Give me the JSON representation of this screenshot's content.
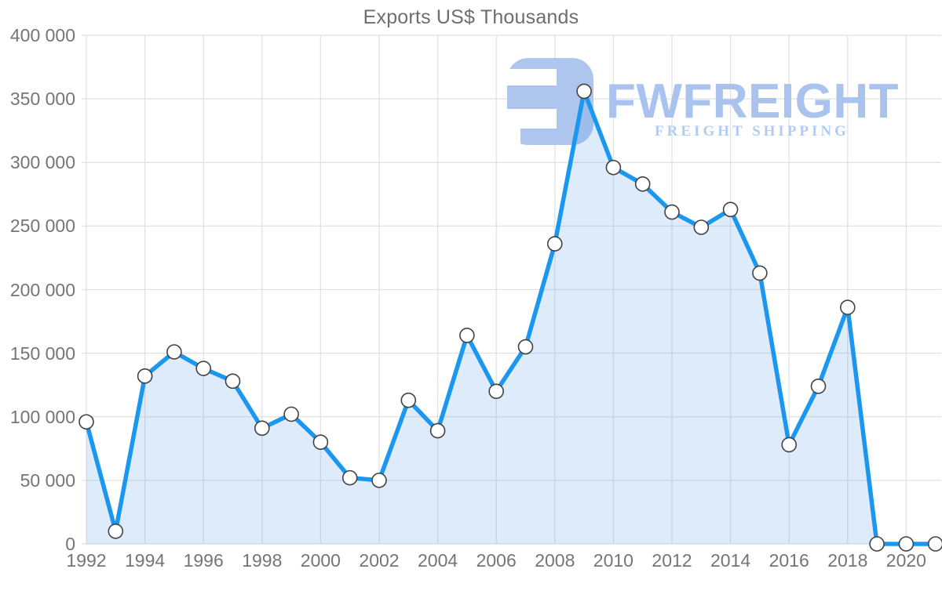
{
  "title": "Exports US$ Thousands",
  "watermark": {
    "brand": "FWFREIGHT",
    "tagline": "FREIGHT SHIPPING",
    "logo_color": "#aec6ee",
    "brand_color": "#a9c3ee",
    "tagline_color": "#b3cbf2"
  },
  "colors": {
    "line": "#1b97ef",
    "area": "rgba(100,165,235,0.22)",
    "marker_fill": "#ffffff",
    "marker_stroke": "#424242",
    "grid": "#e1e1e1",
    "tick_text": "#757575",
    "title_text": "#6e6e6e"
  },
  "chart_data": {
    "type": "area",
    "title": "Exports US$ Thousands",
    "xlabel": "",
    "ylabel": "",
    "x": [
      1992,
      1993,
      1994,
      1995,
      1996,
      1997,
      1998,
      1999,
      2000,
      2001,
      2002,
      2003,
      2004,
      2005,
      2006,
      2007,
      2008,
      2009,
      2010,
      2011,
      2012,
      2013,
      2014,
      2015,
      2016,
      2017,
      2018,
      2019,
      2020,
      2021
    ],
    "values": [
      96000,
      10000,
      132000,
      151000,
      138000,
      128000,
      91000,
      102000,
      80000,
      52000,
      50000,
      113000,
      89000,
      164000,
      120000,
      155000,
      236000,
      356000,
      296000,
      283000,
      261000,
      249000,
      263000,
      213000,
      78000,
      124000,
      186000,
      0,
      0,
      0
    ],
    "ylim": [
      0,
      400000
    ],
    "ytick_step": 50000,
    "ytick_labels": [
      "0",
      "50 000",
      "100 000",
      "150 000",
      "200 000",
      "250 000",
      "300 000",
      "350 000",
      "400 000"
    ],
    "xtick_years": [
      1992,
      1994,
      1996,
      1998,
      2000,
      2002,
      2004,
      2006,
      2008,
      2010,
      2012,
      2014,
      2016,
      2018,
      2020
    ],
    "grid": true,
    "legend": false,
    "marker": "circle-white"
  }
}
